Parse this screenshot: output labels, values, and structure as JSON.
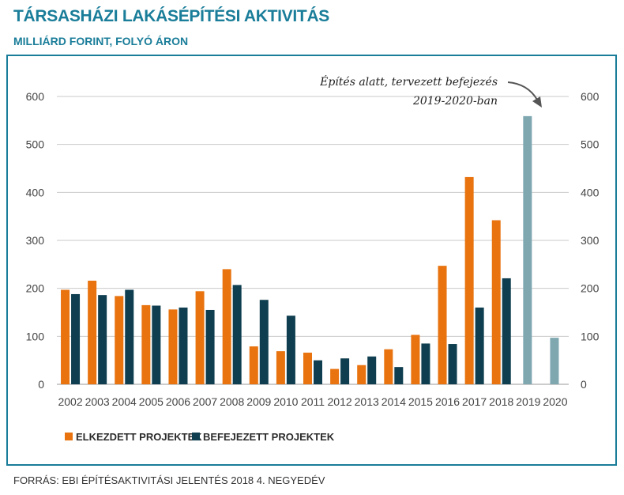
{
  "header": {
    "title": "TÁRSASHÁZI LAKÁSÉPÍTÉSI AKTIVITÁS",
    "subtitle": "MILLIÁRD FORINT, FOLYÓ ÁRON"
  },
  "footer": {
    "source": "FORRÁS: EBI ÉPÍTÉSAKTIVITÁSI JELENTÉS 2018 4. NEGYEDÉV"
  },
  "chart_data": {
    "type": "bar",
    "title": "TÁRSASHÁZI LAKÁSÉPÍTÉSI AKTIVITÁS",
    "subtitle": "MILLIÁRD FORINT, FOLYÓ ÁRON",
    "xlabel": "",
    "ylabel": "",
    "ylim": [
      0,
      600
    ],
    "yticks": [
      0,
      100,
      200,
      300,
      400,
      500,
      600
    ],
    "grid": true,
    "legend_position": "bottom-left",
    "categories": [
      "2002",
      "2003",
      "2004",
      "2005",
      "2006",
      "2007",
      "2008",
      "2009",
      "2010",
      "2011",
      "2012",
      "2013",
      "2014",
      "2015",
      "2016",
      "2017",
      "2018",
      "2019",
      "2020"
    ],
    "series": [
      {
        "name": "ELKEZDETT PROJEKTEK",
        "color": "#e8730f",
        "values": [
          197,
          216,
          184,
          165,
          156,
          194,
          240,
          79,
          69,
          66,
          32,
          40,
          73,
          103,
          247,
          432,
          342,
          null,
          null
        ]
      },
      {
        "name": "BEFEJEZETT PROJEKTEK",
        "color": "#0e3e4f",
        "values": [
          188,
          186,
          197,
          164,
          160,
          155,
          207,
          176,
          143,
          50,
          54,
          58,
          36,
          85,
          84,
          160,
          221,
          null,
          null
        ]
      },
      {
        "name": "",
        "color": "#7ea7b0",
        "values": [
          null,
          null,
          null,
          null,
          null,
          null,
          null,
          null,
          null,
          null,
          null,
          null,
          null,
          null,
          null,
          null,
          null,
          559,
          97
        ]
      }
    ],
    "annotation": {
      "lines": [
        "Építés alatt, tervezett befejezés",
        "2019-2020-ban"
      ],
      "points_to": "2019"
    }
  }
}
